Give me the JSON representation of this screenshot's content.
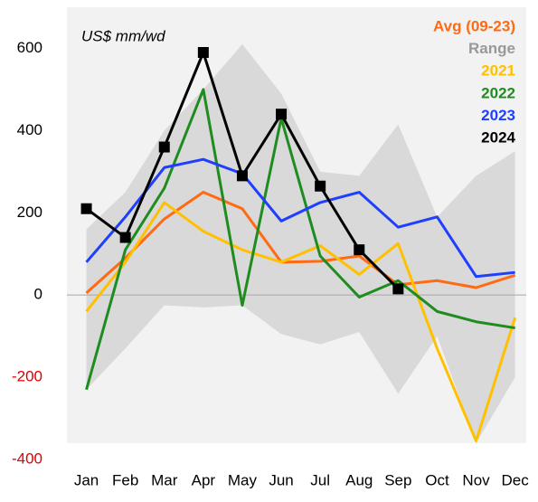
{
  "chart_data": {
    "type": "line",
    "annotation": "US$ mm/wd",
    "categories": [
      "Jan",
      "Feb",
      "Mar",
      "Apr",
      "May",
      "Jun",
      "Jul",
      "Aug",
      "Sep",
      "Oct",
      "Nov",
      "Dec"
    ],
    "range": {
      "name": "Range",
      "color": "#d9d9d9",
      "label_color": "#999999",
      "upper": [
        160,
        250,
        400,
        500,
        610,
        490,
        300,
        290,
        415,
        190,
        290,
        350
      ],
      "lower": [
        -230,
        -130,
        -25,
        -30,
        -25,
        -95,
        -120,
        -90,
        -240,
        -100,
        -360,
        -200
      ]
    },
    "series": [
      {
        "name": "Avg (09-23)",
        "color": "#ff6a13",
        "values": [
          5,
          90,
          185,
          250,
          210,
          80,
          82,
          95,
          25,
          35,
          18,
          48
        ]
      },
      {
        "name": "2021",
        "color": "#ffc000",
        "values": [
          -40,
          80,
          225,
          155,
          110,
          80,
          120,
          50,
          125,
          -130,
          -355,
          -55
        ]
      },
      {
        "name": "2022",
        "color": "#1e8c1e",
        "values": [
          -230,
          110,
          260,
          500,
          -25,
          430,
          95,
          -5,
          35,
          -40,
          -65,
          -80
        ]
      },
      {
        "name": "2023",
        "color": "#1f3fff",
        "values": [
          80,
          190,
          310,
          330,
          295,
          180,
          225,
          250,
          165,
          190,
          45,
          55
        ]
      },
      {
        "name": "2024",
        "color": "#000000",
        "marker": "square",
        "values": [
          210,
          140,
          360,
          590,
          290,
          440,
          265,
          110,
          15,
          null,
          null,
          null
        ]
      }
    ],
    "ylim": [
      -400,
      700
    ],
    "yticks": [
      -400,
      -200,
      0,
      200,
      400,
      600
    ],
    "negative_tick_color": "#e00000",
    "zero_line": true,
    "legend": "top-right"
  }
}
